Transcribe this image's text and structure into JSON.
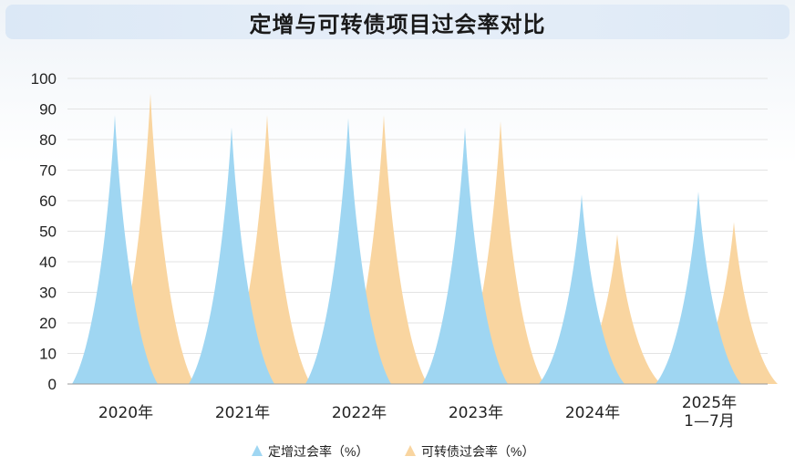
{
  "title": "定增与可转债项目过会率对比",
  "chart_data": {
    "type": "area",
    "title": "定增与可转债项目过会率对比",
    "categories": [
      "2020年",
      "2021年",
      "2022年",
      "2023年",
      "2024年",
      "2025年\n1—7月"
    ],
    "ylim": [
      0,
      100
    ],
    "yticks": [
      0,
      10,
      20,
      30,
      40,
      50,
      60,
      70,
      80,
      90,
      100
    ],
    "grid": true,
    "legend_position": "bottom",
    "series": [
      {
        "name": "定增过会率（%）",
        "color": "#9fd6f2",
        "values": [
          88,
          84,
          87,
          84,
          62,
          63
        ]
      },
      {
        "name": "可转债过会率（%）",
        "color": "#f9d5a0",
        "values": [
          95,
          88,
          88,
          86,
          49,
          53
        ]
      }
    ]
  }
}
